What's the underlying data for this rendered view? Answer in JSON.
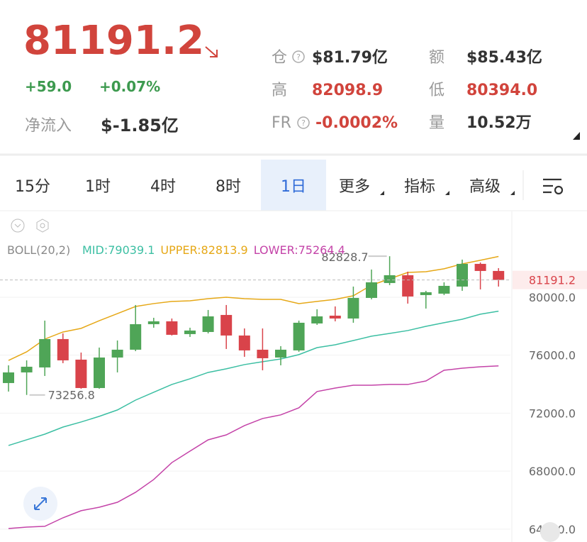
{
  "header": {
    "price": "81191.2",
    "change": "+59.0",
    "change_pct": "+0.07%",
    "net_flow_label": "净流入",
    "net_flow": "$-1.85亿",
    "stats": [
      {
        "label": "仓",
        "value": "$81.79亿",
        "color": "#333333"
      },
      {
        "label": "额",
        "value": "$85.43亿",
        "color": "#333333"
      },
      {
        "label": "高",
        "value": "82098.9",
        "color": "#d1443c"
      },
      {
        "label": "低",
        "value": "80394.0",
        "color": "#d1443c"
      },
      {
        "label": "FR",
        "value": "-0.0002%",
        "color": "#d1443c"
      },
      {
        "label": "量",
        "value": "10.52万",
        "color": "#333333"
      }
    ]
  },
  "tabs": [
    "15分",
    "1时",
    "4时",
    "8时",
    "1日",
    "更多",
    "指标",
    "高级"
  ],
  "selected_tab": 4,
  "chart_data": {
    "type": "candlestick",
    "indicator": "BOLL(20,2)",
    "up_color": "#4fa557",
    "down_color": "#d9434a",
    "candles": {
      "open": [
        74077,
        74811,
        75154,
        77112,
        75692,
        73734,
        75839,
        76378,
        78140,
        78336,
        77455,
        77601,
        78776,
        77357,
        76378,
        75839,
        76329,
        78189,
        78727,
        78531,
        79951,
        80979,
        81517,
        80147,
        80245,
        80734,
        82301,
        81811
      ],
      "high": [
        75300,
        75643,
        78385,
        77503,
        76182,
        76525,
        77014,
        79462,
        78580,
        78531,
        77895,
        79119,
        79462,
        77846,
        77846,
        76623,
        78385,
        79168,
        79364,
        80734,
        81909,
        82828.7,
        81762,
        80441,
        81028,
        82594,
        82398,
        82007
      ],
      "low": [
        73490,
        73256.8,
        74566,
        75448,
        73685,
        73685,
        74811,
        76280,
        77895,
        77357,
        77259,
        77503,
        76427,
        75888,
        74958,
        75301,
        76231,
        78091,
        78336,
        78238,
        79853,
        80832,
        79559,
        79217,
        80147,
        80441,
        80538,
        80734
      ],
      "close": [
        74811,
        75203,
        77112,
        75643,
        73734,
        75839,
        76378,
        78140,
        78336,
        77406,
        77700,
        78678,
        77357,
        76329,
        75790,
        76378,
        78238,
        78678,
        78531,
        79951,
        81028,
        81517,
        80049,
        80343,
        80783,
        82301,
        81811,
        81191.2
      ]
    },
    "series": [
      {
        "name": "MID:79039.1",
        "color": "#3cbfa3",
        "values": [
          69770,
          70160,
          70550,
          71040,
          71390,
          71780,
          72220,
          72900,
          73440,
          73980,
          74370,
          74810,
          75060,
          75350,
          75550,
          75740,
          76040,
          76520,
          76720,
          77010,
          77310,
          77500,
          77700,
          77990,
          78240,
          78480,
          78830,
          79039.1
        ]
      },
      {
        "name": "UPPER:82813.9",
        "color": "#e6a817",
        "values": [
          75640,
          76230,
          77110,
          77600,
          77850,
          78380,
          78870,
          79360,
          79560,
          79710,
          79750,
          79900,
          80000,
          79900,
          79850,
          79850,
          79560,
          79710,
          79850,
          80100,
          80830,
          81270,
          81710,
          81760,
          81960,
          82300,
          82550,
          82813.9
        ]
      },
      {
        "name": "LOWER:75264.4",
        "color": "#c443a8",
        "values": [
          64040,
          64140,
          64190,
          64780,
          65270,
          65510,
          65850,
          66540,
          67420,
          68590,
          69380,
          70160,
          70500,
          71140,
          71630,
          71880,
          72370,
          73490,
          73730,
          73930,
          73930,
          73980,
          73980,
          74220,
          74960,
          75100,
          75200,
          75264.4
        ]
      }
    ],
    "ylim": [
      63110,
      85920
    ],
    "yticks": [
      {
        "value": 80000,
        "label": "80000.0"
      },
      {
        "value": 76000,
        "label": "76000.0"
      },
      {
        "value": 72000,
        "label": "72000.0"
      },
      {
        "value": 68000,
        "label": "68000.0"
      },
      {
        "value": 64000,
        "label": "64000.0"
      }
    ],
    "grid": true
  }
}
